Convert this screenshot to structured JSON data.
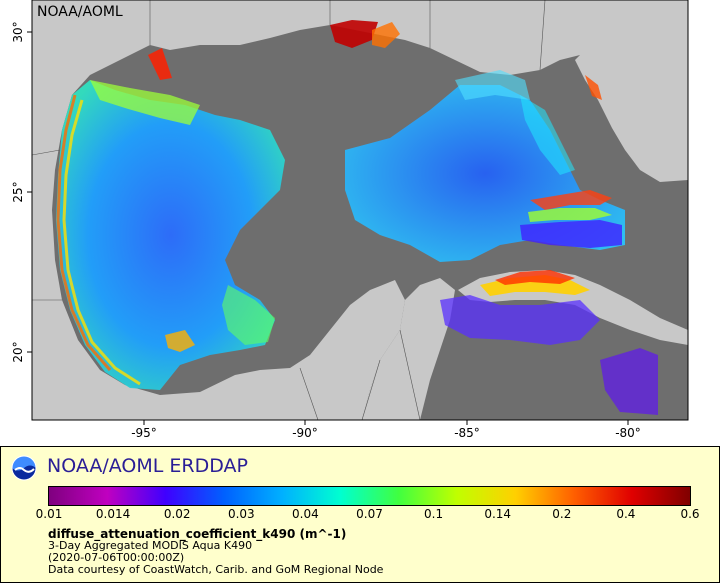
{
  "map": {
    "watermark": "NOAA/AOML",
    "lon_ticks": [
      "-95°",
      "-90°",
      "-85°",
      "-80°"
    ],
    "lat_ticks": [
      "30°",
      "25°",
      "20°"
    ],
    "colors": {
      "ocean_nodata": "#6e6e6e",
      "land": "#c8c8c8",
      "frame": "#000000"
    }
  },
  "legend": {
    "title": "NOAA/AOML ERDDAP",
    "colorbar_ticks": [
      "0.01",
      "0.014",
      "0.02",
      "0.03",
      "0.04",
      "0.07",
      "0.1",
      "0.14",
      "0.2",
      "0.4",
      "0.6"
    ],
    "colorbar_colors": [
      "#7f007f",
      "#c000c0",
      "#3f00ff",
      "#0060ff",
      "#00b0ff",
      "#00ffd0",
      "#40ff40",
      "#c0ff00",
      "#ffd000",
      "#ff6000",
      "#e00000",
      "#800000"
    ],
    "variable": "diffuse_attenuation_coefficient_k490 (m^-1)",
    "source_line": "3-Day Aggregated MODIS Aqua K490",
    "time_line": "(2020-07-06T00:00:00Z)",
    "credit_line": "Data courtesy of CoastWatch, Carib. and GoM Regional Node"
  }
}
